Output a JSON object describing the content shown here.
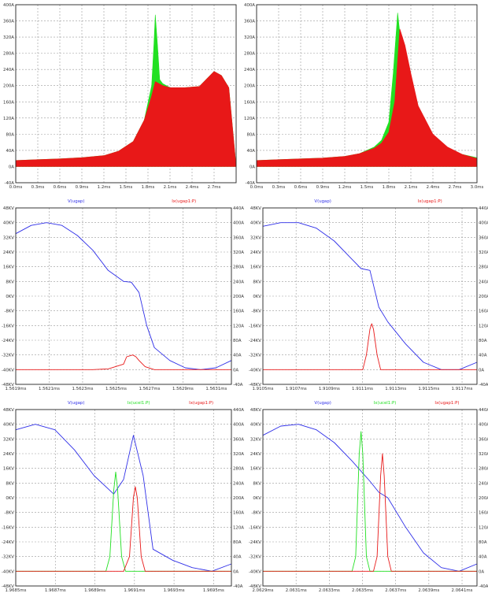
{
  "colors": {
    "voltage": "#2f2fe8",
    "current_green": "#22e022",
    "current_red": "#e81818"
  },
  "chart_data": [
    {
      "type": "area",
      "id": "p1",
      "y_ticks": [
        "400A",
        "360A",
        "320A",
        "280A",
        "240A",
        "200A",
        "160A",
        "120A",
        "80A",
        "40A",
        "0A",
        "-40A"
      ],
      "x_ticks": [
        "0.0ms",
        "0.3ms",
        "0.6ms",
        "0.9ms",
        "1.2ms",
        "1.5ms",
        "1.8ms",
        "2.1ms",
        "2.4ms",
        "2.7ms"
      ],
      "xlim": [
        0,
        3.0
      ],
      "ylim": [
        -40,
        400
      ],
      "series": [
        {
          "color": "green",
          "x": [
            0,
            0.3,
            0.6,
            0.9,
            1.2,
            1.4,
            1.6,
            1.75,
            1.85,
            1.88,
            1.9,
            1.93,
            1.96,
            2.0,
            2.1,
            2.3,
            2.5,
            2.7,
            2.8,
            2.9,
            3.0
          ],
          "y": [
            15,
            17,
            19,
            22,
            27,
            38,
            62,
            115,
            200,
            300,
            375,
            300,
            215,
            205,
            195,
            195,
            198,
            235,
            225,
            195,
            0
          ]
        },
        {
          "color": "red",
          "x": [
            0,
            0.3,
            0.6,
            0.9,
            1.2,
            1.4,
            1.6,
            1.75,
            1.85,
            1.9,
            1.95,
            2.0,
            2.1,
            2.3,
            2.5,
            2.7,
            2.8,
            2.9,
            3.0
          ],
          "y": [
            15,
            17,
            19,
            22,
            27,
            38,
            62,
            115,
            175,
            210,
            205,
            200,
            195,
            195,
            198,
            235,
            225,
            195,
            0
          ]
        }
      ]
    },
    {
      "type": "area",
      "id": "p2",
      "y_ticks": [
        "400A",
        "360A",
        "320A",
        "280A",
        "240A",
        "200A",
        "160A",
        "120A",
        "80A",
        "40A",
        "0A",
        "-40A"
      ],
      "x_ticks": [
        "0.0ms",
        "0.3ms",
        "0.6ms",
        "0.9ms",
        "1.2ms",
        "1.5ms",
        "1.8ms",
        "2.1ms",
        "2.4ms",
        "2.7ms",
        "3.0ms"
      ],
      "xlim": [
        0,
        3.0
      ],
      "ylim": [
        -40,
        400
      ],
      "series": [
        {
          "color": "green",
          "x": [
            0,
            0.3,
            0.6,
            0.9,
            1.2,
            1.4,
            1.6,
            1.7,
            1.8,
            1.86,
            1.92,
            1.98,
            2.05,
            2.2,
            2.4,
            2.6,
            2.8,
            3.0
          ],
          "y": [
            15,
            17,
            19,
            21,
            25,
            32,
            48,
            65,
            110,
            230,
            380,
            280,
            215,
            120,
            70,
            45,
            30,
            22
          ]
        },
        {
          "color": "red",
          "x": [
            0,
            0.3,
            0.6,
            0.9,
            1.2,
            1.4,
            1.6,
            1.7,
            1.8,
            1.88,
            1.95,
            2.02,
            2.1,
            2.2,
            2.4,
            2.6,
            2.8,
            3.0
          ],
          "y": [
            15,
            17,
            19,
            21,
            25,
            32,
            45,
            58,
            85,
            160,
            340,
            300,
            230,
            150,
            80,
            48,
            30,
            20
          ]
        }
      ]
    },
    {
      "type": "line",
      "id": "p3",
      "legend": [
        "V(ugap)",
        "Ix(ugap1:P)"
      ],
      "y_ticks_left": [
        "48KV",
        "40KV",
        "32KV",
        "24KV",
        "16KV",
        "8KV",
        "0KV",
        "-8KV",
        "-16KV",
        "-24KV",
        "-32KV",
        "-40KV",
        "-48KV"
      ],
      "y_ticks_right": [
        "440A",
        "400A",
        "360A",
        "320A",
        "280A",
        "240A",
        "200A",
        "160A",
        "120A",
        "80A",
        "40A",
        "0A",
        "-40A"
      ],
      "x_ticks": [
        "1.5619ms",
        "1.5621ms",
        "1.5623ms",
        "1.5625ms",
        "1.5627ms",
        "1.5629ms",
        "1.5631ms"
      ],
      "xlim": [
        1.5619,
        1.5633
      ],
      "ylim_left": [
        -48,
        48
      ],
      "ylim_right": [
        -40,
        440
      ],
      "series": [
        {
          "name": "V(ugap)",
          "axis": "left",
          "color": "blue",
          "x": [
            1.5619,
            1.562,
            1.5621,
            1.5622,
            1.5623,
            1.5624,
            1.5625,
            1.5626,
            1.56265,
            1.5627,
            1.56275,
            1.5628,
            1.5629,
            1.563,
            1.5631,
            1.5632,
            1.5633
          ],
          "y": [
            34,
            38.5,
            40,
            38.5,
            33,
            25,
            14,
            8,
            7.6,
            2,
            -16,
            -28,
            -35,
            -39,
            -40,
            -39,
            -35
          ]
        },
        {
          "name": "Ix(ugap1:P)",
          "axis": "right",
          "color": "red",
          "x": [
            1.5619,
            1.5624,
            1.5625,
            1.5626,
            1.56262,
            1.56266,
            1.56268,
            1.5627,
            1.56274,
            1.5628,
            1.5633
          ],
          "y": [
            0,
            0,
            2,
            15,
            35,
            40,
            35,
            25,
            8,
            0,
            0
          ]
        }
      ]
    },
    {
      "type": "line",
      "id": "p4",
      "legend": [
        "V(ugap)",
        "Ix(ugap1:P)"
      ],
      "y_ticks_left": [
        "48KV",
        "40KV",
        "32KV",
        "24KV",
        "16KV",
        "8KV",
        "0KV",
        "-8KV",
        "-16KV",
        "-24KV",
        "-32KV",
        "-40KV",
        "-48KV"
      ],
      "y_ticks_right": [
        "440A",
        "400A",
        "360A",
        "320A",
        "280A",
        "240A",
        "200A",
        "160A",
        "120A",
        "80A",
        "40A",
        "0A",
        "-40A"
      ],
      "x_ticks": [
        "1.9105ms",
        "1.9107ms",
        "1.9109ms",
        "1.9111ms",
        "1.9113ms",
        "1.9115ms",
        "1.9117ms"
      ],
      "xlim": [
        1.9105,
        1.9117
      ],
      "ylim_left": [
        -48,
        48
      ],
      "ylim_right": [
        -40,
        440
      ],
      "series": [
        {
          "name": "V(ugap)",
          "axis": "left",
          "color": "blue",
          "x": [
            1.9105,
            1.9106,
            1.9107,
            1.9108,
            1.9109,
            1.911,
            1.91105,
            1.9111,
            1.91115,
            1.9112,
            1.9113,
            1.9114,
            1.9115,
            1.9116,
            1.9117
          ],
          "y": [
            38,
            40,
            40,
            37,
            30,
            20,
            15,
            14,
            -6,
            -14,
            -26,
            -36,
            -40,
            -40,
            -36
          ]
        },
        {
          "name": "Ix(ugap1:P)",
          "axis": "right",
          "color": "red",
          "x": [
            1.9105,
            1.91106,
            1.91108,
            1.9111,
            1.91111,
            1.91112,
            1.91114,
            1.91116,
            1.9117
          ],
          "y": [
            0,
            0,
            40,
            110,
            125,
            110,
            40,
            0,
            0
          ]
        }
      ]
    },
    {
      "type": "line",
      "id": "p5",
      "legend": [
        "V(ugap)",
        "Ix(ucel1:P)",
        "Ix(ugap1:P)"
      ],
      "y_ticks_left": [
        "48KV",
        "40KV",
        "32KV",
        "24KV",
        "16KV",
        "8KV",
        "0KV",
        "-8KV",
        "-16KV",
        "-24KV",
        "-32KV",
        "-40KV",
        "-48KV"
      ],
      "y_ticks_right": [
        "440A",
        "400A",
        "360A",
        "320A",
        "280A",
        "240A",
        "200A",
        "160A",
        "120A",
        "80A",
        "40A",
        "0A",
        "-40A"
      ],
      "x_ticks": [
        "1.9685ms",
        "1.9687ms",
        "1.9689ms",
        "1.9691ms",
        "1.9693ms",
        "1.9695ms"
      ],
      "xlim": [
        1.9685,
        1.9696
      ],
      "ylim_left": [
        -48,
        48
      ],
      "ylim_right": [
        -40,
        440
      ],
      "series": [
        {
          "name": "V(ugap)",
          "axis": "left",
          "color": "blue",
          "x": [
            1.9685,
            1.9686,
            1.9687,
            1.9688,
            1.9689,
            1.969,
            1.96905,
            1.9691,
            1.96915,
            1.9692,
            1.9693,
            1.9694,
            1.9695,
            1.9696
          ],
          "y": [
            37,
            40,
            37,
            26,
            12,
            2,
            10,
            34,
            12,
            -28,
            -34,
            -38,
            -40,
            -36
          ]
        },
        {
          "name": "Ix(ucel1:P)",
          "axis": "green",
          "color": "green",
          "x": [
            1.9685,
            1.96896,
            1.96898,
            1.969,
            1.96901,
            1.96902,
            1.96904,
            1.96906,
            1.9696
          ],
          "y": [
            0,
            0,
            40,
            220,
            270,
            220,
            40,
            0,
            0
          ]
        },
        {
          "name": "Ix(ugap1:P)",
          "axis": "right",
          "color": "red",
          "x": [
            1.9685,
            1.96905,
            1.96908,
            1.9691,
            1.96911,
            1.96912,
            1.96914,
            1.96916,
            1.9696
          ],
          "y": [
            0,
            0,
            40,
            200,
            230,
            200,
            40,
            0,
            0
          ]
        }
      ]
    },
    {
      "type": "line",
      "id": "p6",
      "legend": [
        "V(ugap)",
        "Ix(ucel1:P)",
        "Ix(ugap1:P)"
      ],
      "y_ticks_left": [
        "48KV",
        "40KV",
        "32KV",
        "24KV",
        "16KV",
        "8KV",
        "0KV",
        "-8KV",
        "-16KV",
        "-24KV",
        "-32KV",
        "-40KV",
        "-48KV"
      ],
      "y_ticks_right": [
        "440A",
        "400A",
        "360A",
        "320A",
        "280A",
        "240A",
        "200A",
        "160A",
        "120A",
        "80A",
        "40A",
        "0A",
        "-40A"
      ],
      "x_ticks": [
        "2.0629ms",
        "2.0631ms",
        "2.0633ms",
        "2.0635ms",
        "2.0637ms",
        "2.0639ms",
        "2.0641ms"
      ],
      "xlim": [
        2.0629,
        2.0641
      ],
      "ylim_left": [
        -48,
        48
      ],
      "ylim_right": [
        -40,
        440
      ],
      "series": [
        {
          "name": "V(ugap)",
          "axis": "left",
          "color": "blue",
          "x": [
            2.0629,
            2.063,
            2.0631,
            2.0632,
            2.0633,
            2.0634,
            2.0635,
            2.06355,
            2.0636,
            2.0637,
            2.0638,
            2.0639,
            2.064,
            2.0641
          ],
          "y": [
            34,
            39,
            40,
            37,
            30,
            20,
            9,
            3,
            0,
            -16,
            -30,
            -38,
            -40,
            -36
          ]
        },
        {
          "name": "Ix(ucel1:P)",
          "axis": "green",
          "color": "green",
          "x": [
            2.0629,
            2.0634,
            2.06342,
            2.06344,
            2.06345,
            2.06346,
            2.06348,
            2.0635,
            2.0641
          ],
          "y": [
            0,
            0,
            40,
            320,
            380,
            320,
            40,
            0,
            0
          ]
        },
        {
          "name": "Ix(ugap1:P)",
          "axis": "right",
          "color": "red",
          "x": [
            2.0629,
            2.06352,
            2.06354,
            2.06356,
            2.06357,
            2.06358,
            2.0636,
            2.06362,
            2.0641
          ],
          "y": [
            0,
            0,
            40,
            260,
            320,
            260,
            40,
            0,
            0
          ]
        }
      ]
    }
  ]
}
